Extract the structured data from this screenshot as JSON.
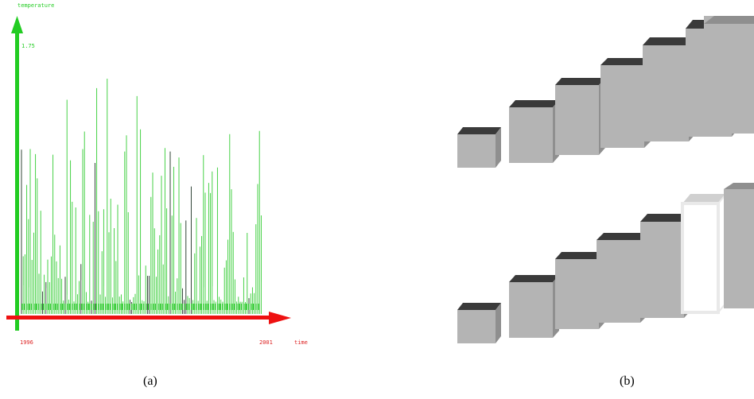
{
  "chart_data": {
    "type": "bar",
    "title": "",
    "ylabel": "temperature",
    "xlabel": "time",
    "y_tick": "1.75",
    "x_start": "1996",
    "x_end": "2001",
    "colors": {
      "y_axis": "#22cc22",
      "x_axis": "#ee1111",
      "bars_green": "#33cc33",
      "bars_dark": "#1a3020",
      "bars_white": "#ffffff"
    }
  },
  "fig_b": {
    "colors": {
      "face": "#b4b4b4",
      "side": "#8f8f8f",
      "top": "#3a3a3a",
      "outline": "#e9e9e9"
    },
    "row1_boxes": 7,
    "row2_boxes": 7,
    "highlighted_box_row2": 6
  },
  "captions": {
    "a": "(a)",
    "b": "(b)"
  }
}
